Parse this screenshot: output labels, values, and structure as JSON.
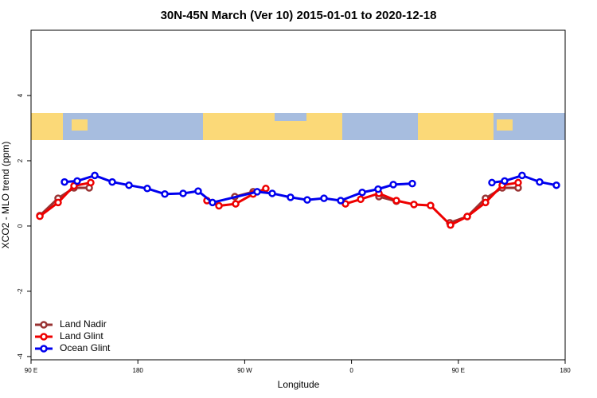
{
  "chart_data": {
    "type": "line",
    "title": "30N-45N March (Ver 10)   2015-01-01 to 2020-12-18",
    "x_label": "Longitude",
    "y_label": "XCO2 - MLO trend (ppm)",
    "xlim": [
      90,
      540
    ],
    "xticks": [
      {
        "value": 90,
        "label": "90 E"
      },
      180,
      {
        "value": 270,
        "label": "90 W"
      },
      {
        "value": 360,
        "label": "0"
      },
      {
        "value": 450,
        "label": "90 E"
      },
      {
        "value": 540,
        "label": "180"
      }
    ],
    "ylim": [
      -4.1,
      6.0
    ],
    "yticks": [
      -4,
      -2,
      0,
      2,
      4
    ],
    "legend": "bottom-left",
    "series": [
      {
        "name": "Land Nadir",
        "color": "#993333",
        "x": [
          97.4,
          112.8,
          126.2,
          139.0,
          null,
          261.7,
          277.1,
          null,
          383.1,
          397.8,
          null,
          442.8,
          457.5,
          472.9,
          487.0,
          500.4
        ],
        "values": [
          0.32,
          0.85,
          1.17,
          1.17,
          null,
          0.9,
          1.05,
          null,
          0.9,
          0.76,
          null,
          0.1,
          0.29,
          0.85,
          1.17,
          1.17
        ]
      },
      {
        "name": "Land Glint",
        "color": "#ee0000",
        "x": [
          97.4,
          112.8,
          126.2,
          140.3,
          null,
          238.2,
          248.3,
          262.4,
          277.1,
          287.8,
          null,
          354.9,
          367.7,
          383.1,
          397.8,
          412.6,
          426.6,
          443.4,
          457.5,
          472.9,
          487.0,
          500.4
        ],
        "values": [
          0.3,
          0.72,
          1.23,
          1.33,
          null,
          0.78,
          0.62,
          0.68,
          0.98,
          1.15,
          null,
          0.68,
          0.82,
          1.0,
          0.78,
          0.66,
          0.63,
          0.03,
          0.29,
          0.72,
          1.25,
          1.33
        ]
      },
      {
        "name": "Ocean Glint",
        "color": "#0000ee",
        "x": [
          118.2,
          128.9,
          143.7,
          158.4,
          172.5,
          187.9,
          202.7,
          218.1,
          230.8,
          242.9,
          280.5,
          293.2,
          308.6,
          322.7,
          336.8,
          350.9,
          369.0,
          382.4,
          395.2,
          411.2,
          null,
          478.3,
          489.0,
          503.7,
          518.5,
          532.6
        ],
        "values": [
          1.35,
          1.38,
          1.55,
          1.35,
          1.25,
          1.15,
          0.98,
          1.0,
          1.07,
          0.72,
          1.05,
          1.0,
          0.88,
          0.8,
          0.85,
          0.78,
          1.03,
          1.13,
          1.27,
          1.3,
          null,
          1.33,
          1.38,
          1.55,
          1.35,
          1.25
        ]
      }
    ]
  }
}
